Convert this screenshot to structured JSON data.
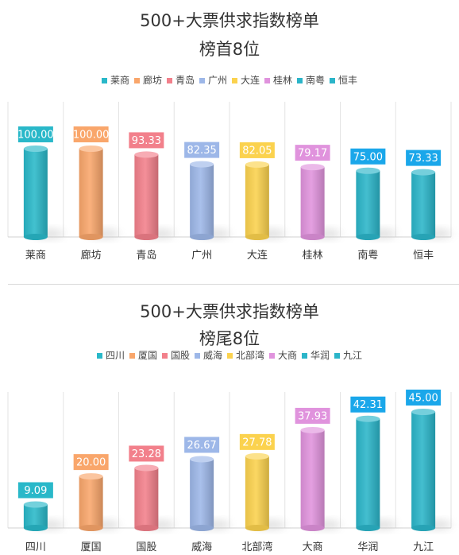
{
  "chart_data": [
    {
      "type": "bar",
      "title": "500+大票供求指数榜单",
      "subtitle": "榜首8位",
      "categories": [
        "莱商",
        "廊坊",
        "青岛",
        "广州",
        "大连",
        "桂林",
        "南粤",
        "恒丰"
      ],
      "values": [
        100.0,
        100.0,
        93.33,
        82.35,
        82.05,
        79.17,
        75.0,
        73.33
      ],
      "value_labels": [
        "100.00",
        "100.00",
        "93.33",
        "82.35",
        "82.05",
        "79.17",
        "75.00",
        "73.33"
      ],
      "colors": [
        "#29B8C9",
        "#F9A66B",
        "#F2808B",
        "#9DB7E8",
        "#FBD24E",
        "#E093DD",
        "#2BB5C9",
        "#2BB5C9"
      ],
      "label_bg": [
        "#29B8C9",
        "#F9A66B",
        "#F2808B",
        "#9DB7E8",
        "#FBD24E",
        "#E093DD",
        "#1AA7EA",
        "#1AA7EA"
      ],
      "legend": [
        "莱商",
        "廊坊",
        "青岛",
        "广州",
        "大连",
        "桂林",
        "南粤",
        "恒丰"
      ],
      "legend_position": "top",
      "ylim": [
        0,
        100
      ],
      "grid": true
    },
    {
      "type": "bar",
      "title": "500+大票供求指数榜单",
      "subtitle": "榜尾8位",
      "categories": [
        "四川",
        "厦国",
        "国股",
        "威海",
        "北部湾",
        "大商",
        "华润",
        "九江"
      ],
      "values": [
        9.09,
        20.0,
        23.28,
        26.67,
        27.78,
        37.93,
        42.31,
        45.0
      ],
      "value_labels": [
        "9.09",
        "20.00",
        "23.28",
        "26.67",
        "27.78",
        "37.93",
        "42.31",
        "45.00"
      ],
      "colors": [
        "#29B8C9",
        "#F9A66B",
        "#F2808B",
        "#9DB7E8",
        "#FBD24E",
        "#E093DD",
        "#2BB5C9",
        "#2BB5C9"
      ],
      "label_bg": [
        "#29B8C9",
        "#F9A66B",
        "#F2808B",
        "#9DB7E8",
        "#FBD24E",
        "#E093DD",
        "#1AA7EA",
        "#1AA7EA"
      ],
      "legend": [
        "四川",
        "厦国",
        "国股",
        "威海",
        "北部湾",
        "大商",
        "华润",
        "九江"
      ],
      "legend_position": "top",
      "ylim": [
        0,
        45
      ],
      "grid": true
    }
  ]
}
